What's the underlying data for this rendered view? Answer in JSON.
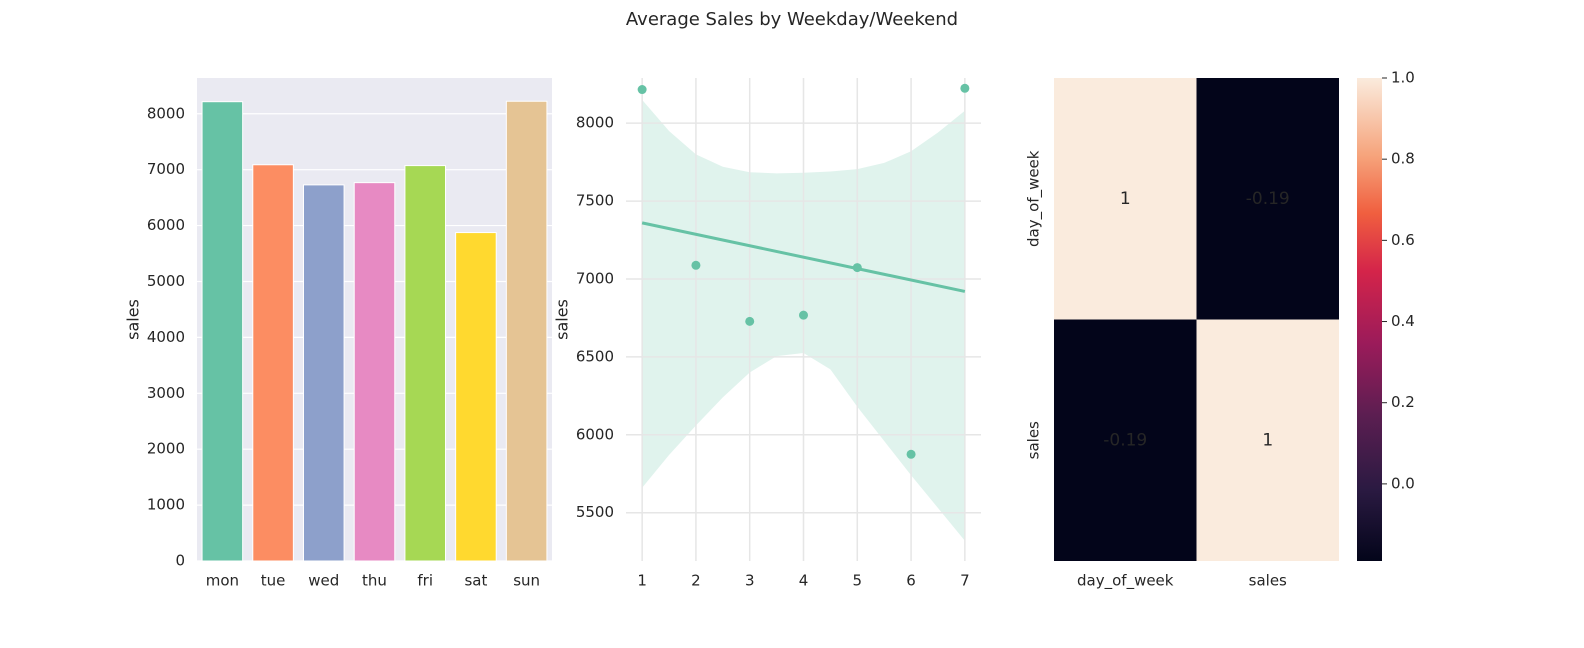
{
  "figure": {
    "title": "Average Sales by Weekday/Weekend"
  },
  "chart_data": [
    {
      "type": "bar",
      "xlabel": "",
      "ylabel": "sales",
      "categories": [
        "mon",
        "tue",
        "wed",
        "thu",
        "fri",
        "sat",
        "sun"
      ],
      "values": [
        8216,
        7088,
        6728,
        6768,
        7073,
        5875,
        8224
      ],
      "colors": [
        "#66c2a5",
        "#fc8d62",
        "#8da0cb",
        "#e78ac3",
        "#a6d854",
        "#ffd92f",
        "#e5c494"
      ],
      "ylim": [
        0,
        8640
      ],
      "yticks": [
        0,
        1000,
        2000,
        3000,
        4000,
        5000,
        6000,
        7000,
        8000
      ],
      "grid": true,
      "background": "#eaeaf2"
    },
    {
      "type": "scatter",
      "subtype": "regression",
      "xlabel": "",
      "ylabel": "sales",
      "x": [
        1,
        2,
        3,
        4,
        5,
        6,
        7
      ],
      "y": [
        8216,
        7088,
        6728,
        6768,
        7073,
        5875,
        8224
      ],
      "fit_line": [
        [
          1,
          7360
        ],
        [
          7,
          6920
        ]
      ],
      "ci_upper": [
        [
          1,
          8150
        ],
        [
          1.5,
          7950
        ],
        [
          2,
          7800
        ],
        [
          2.5,
          7720
        ],
        [
          3,
          7685
        ],
        [
          3.5,
          7678
        ],
        [
          4,
          7682
        ],
        [
          4.5,
          7690
        ],
        [
          5,
          7705
        ],
        [
          5.5,
          7745
        ],
        [
          6,
          7820
        ],
        [
          6.5,
          7940
        ],
        [
          7,
          8080
        ]
      ],
      "ci_lower": [
        [
          1,
          5660
        ],
        [
          1.5,
          5870
        ],
        [
          2,
          6060
        ],
        [
          2.5,
          6240
        ],
        [
          3,
          6400
        ],
        [
          3.5,
          6505
        ],
        [
          4,
          6525
        ],
        [
          4.5,
          6420
        ],
        [
          5,
          6180
        ],
        [
          5.5,
          5960
        ],
        [
          6,
          5740
        ],
        [
          6.5,
          5530
        ],
        [
          7,
          5320
        ]
      ],
      "xlim": [
        0.7,
        7.3
      ],
      "ylim": [
        5190,
        8290
      ],
      "xticks": [
        1,
        2,
        3,
        4,
        5,
        6,
        7
      ],
      "yticks": [
        5500,
        6000,
        6500,
        7000,
        7500,
        8000
      ],
      "color": "#66c2a5",
      "grid": true,
      "background": "#ffffff"
    },
    {
      "type": "heatmap",
      "x_labels": [
        "day_of_week",
        "sales"
      ],
      "y_labels": [
        "day_of_week",
        "sales"
      ],
      "values": [
        [
          1,
          -0.19
        ],
        [
          -0.19,
          1
        ]
      ],
      "annotations": [
        [
          "1",
          "-0.19"
        ],
        [
          "-0.19",
          "1"
        ]
      ],
      "colorbar": {
        "range": [
          -0.19,
          1.0
        ],
        "ticks": [
          0.0,
          0.2,
          0.4,
          0.6,
          0.8,
          1.0
        ],
        "tick_labels": [
          "0.0",
          "0.2",
          "0.4",
          "0.6",
          "0.8",
          "1.0"
        ]
      },
      "colormap": "rocket",
      "colors": {
        "high": "#faebdd",
        "low": "#03051a"
      }
    }
  ]
}
